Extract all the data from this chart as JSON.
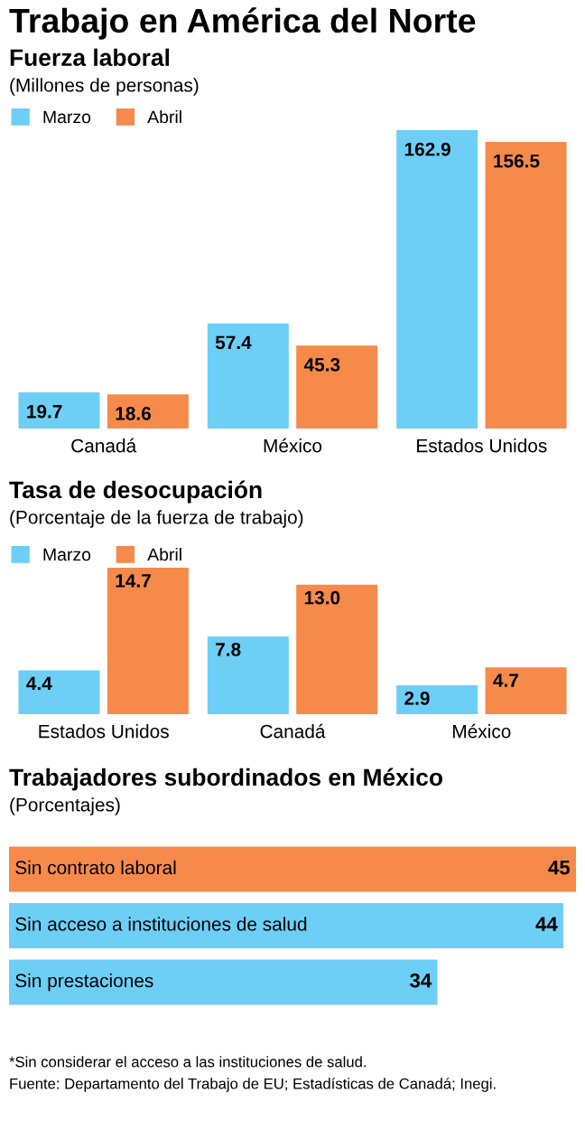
{
  "chart_data": [
    {
      "type": "other",
      "title": "Trabajo en América del Norte"
    },
    {
      "type": "bar",
      "title": "Fuerza laboral",
      "subtitle": "(Millones de personas)",
      "categories": [
        "Canadá",
        "México",
        "Estados Unidos"
      ],
      "series": [
        {
          "name": "Marzo",
          "color": "#6dcff6",
          "values": [
            19.7,
            57.4,
            162.9
          ]
        },
        {
          "name": "Abril",
          "color": "#f58a4b",
          "values": [
            18.6,
            45.3,
            156.5
          ]
        }
      ],
      "data_labels": true,
      "legend": "top left"
    },
    {
      "type": "bar",
      "title": "Tasa de desocupación",
      "subtitle": "(Porcentaje de la fuerza de trabajo)",
      "categories": [
        "Estados Unidos",
        "Canadá",
        "México"
      ],
      "series": [
        {
          "name": "Marzo",
          "color": "#6dcff6",
          "values": [
            4.4,
            7.8,
            2.9
          ],
          "value_labels": [
            "4.4",
            "7.8",
            "2.9"
          ]
        },
        {
          "name": "Abril",
          "color": "#f58a4b",
          "values": [
            14.7,
            13.0,
            4.7
          ],
          "value_labels": [
            "14.7",
            "13.0",
            "4.7"
          ]
        }
      ],
      "legend": "top left"
    },
    {
      "type": "bar",
      "orientation": "horizontal",
      "title": "Trabajadores subordinados en México",
      "subtitle": "(Porcentajes)",
      "categories": [
        "Sin contrato laboral",
        "Sin acceso a instituciones de salud",
        "Sin prestaciones"
      ],
      "values": [
        45,
        44,
        34
      ],
      "colors": [
        "#f58a4b",
        "#6dcff6",
        "#6dcff6"
      ],
      "data_labels": true,
      "annotations": [
        "*Sin considerar el acceso a las instituciones de salud.",
        "Fuente: Departamento del Trabajo de EU; Estadísticas de Canadá; Inegi."
      ]
    }
  ]
}
